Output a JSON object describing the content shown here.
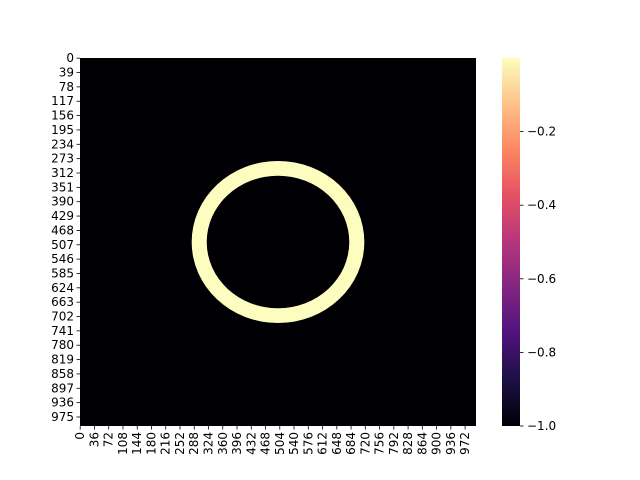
{
  "chart_data": {
    "type": "heatmap",
    "title": "",
    "xlabel": "",
    "ylabel": "",
    "rows": 1000,
    "cols": 1000,
    "x_tick_labels": [
      "0",
      "36",
      "72",
      "108",
      "144",
      "180",
      "216",
      "252",
      "288",
      "324",
      "360",
      "396",
      "432",
      "468",
      "504",
      "540",
      "576",
      "612",
      "648",
      "684",
      "720",
      "756",
      "792",
      "828",
      "864",
      "900",
      "936",
      "972"
    ],
    "y_tick_labels": [
      "0",
      "39",
      "78",
      "117",
      "156",
      "195",
      "234",
      "273",
      "312",
      "351",
      "390",
      "429",
      "468",
      "507",
      "546",
      "585",
      "624",
      "663",
      "702",
      "741",
      "780",
      "819",
      "858",
      "897",
      "936",
      "975"
    ],
    "background_value": -1.0,
    "ring": {
      "value": 0.0,
      "center_x": 500,
      "center_y": 500,
      "outer_radius_x": 218,
      "outer_radius_y": 220,
      "inner_radius_x": 180,
      "inner_radius_y": 180
    },
    "colormap": "magma",
    "colorbar": {
      "min": -1.0,
      "max": 0.0,
      "tick_values": [
        -1.0,
        -0.8,
        -0.6,
        -0.4,
        -0.2
      ],
      "tick_labels": [
        "−1.0",
        "−0.8",
        "−0.6",
        "−0.4",
        "−0.2"
      ]
    },
    "colors": {
      "background": "#000004",
      "ring": "#fcfdbf"
    }
  }
}
